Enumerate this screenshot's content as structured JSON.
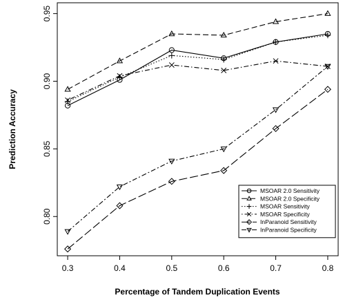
{
  "chart_data": {
    "type": "line",
    "title": "",
    "xlabel": "Percentage of Tandem Duplication Events",
    "ylabel": "Prediction Accuracy",
    "x": [
      0.3,
      0.4,
      0.5,
      0.6,
      0.7,
      0.8
    ],
    "x_ticks": [
      "0.3",
      "0.4",
      "0.5",
      "0.6",
      "0.7",
      "0.8"
    ],
    "y_ticks": [
      "0.80",
      "0.85",
      "0.90",
      "0.95"
    ],
    "xlim": [
      0.28,
      0.82
    ],
    "ylim": [
      0.771,
      0.958
    ],
    "legend_position": "bottom-right",
    "grid": false,
    "series": [
      {
        "name": "MSOAR 2.0 Sensitivity",
        "marker": "circle",
        "dash": "solid",
        "values": [
          0.882,
          0.901,
          0.923,
          0.917,
          0.929,
          0.935
        ]
      },
      {
        "name": "MSOAR 2.0 Specificity",
        "marker": "triangle-up",
        "dash": "dashed",
        "values": [
          0.894,
          0.915,
          0.935,
          0.934,
          0.944,
          0.95
        ]
      },
      {
        "name": "MSOAR Sensitivity",
        "marker": "plus",
        "dash": "dotted",
        "values": [
          0.885,
          0.903,
          0.919,
          0.916,
          0.929,
          0.934
        ]
      },
      {
        "name": "MSOAR Specificity",
        "marker": "cross",
        "dash": "dot-dash",
        "values": [
          0.886,
          0.904,
          0.912,
          0.908,
          0.915,
          0.911
        ]
      },
      {
        "name": "InParanoid Sensitivity",
        "marker": "diamond",
        "dash": "long-dash",
        "values": [
          0.776,
          0.808,
          0.826,
          0.834,
          0.865,
          0.894
        ]
      },
      {
        "name": "InParanoid Specificity",
        "marker": "triangle-down",
        "dash": "two-dash",
        "values": [
          0.789,
          0.822,
          0.841,
          0.85,
          0.879,
          0.911
        ]
      }
    ]
  }
}
